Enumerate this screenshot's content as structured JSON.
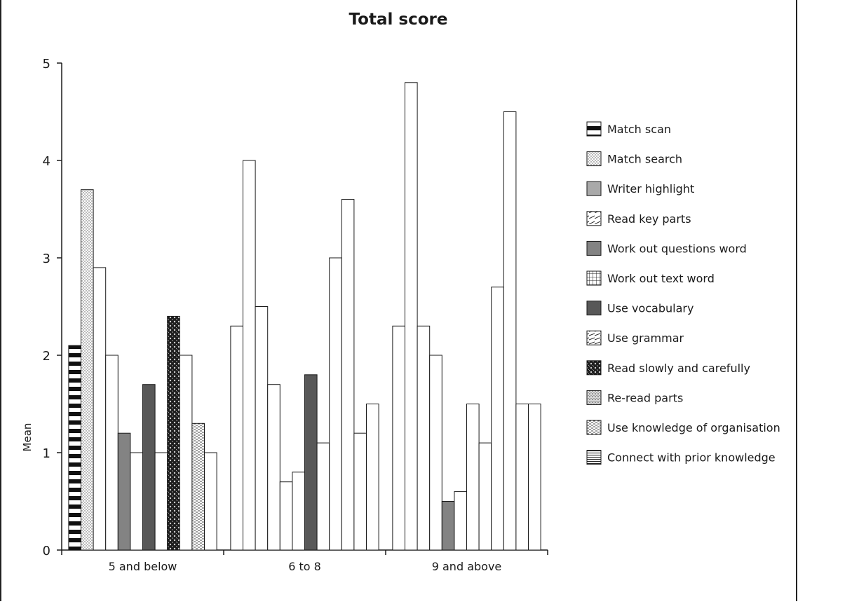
{
  "chart_data": {
    "type": "bar",
    "title": "Total score",
    "xlabel": "",
    "ylabel": "Mean",
    "ylim": [
      0,
      5
    ],
    "yticks": [
      "0",
      "1",
      "2",
      "3",
      "4",
      "5"
    ],
    "categories": [
      "5 and below",
      "6 to 8",
      "9 and above"
    ],
    "grid": false,
    "legend_position": "right",
    "series": [
      {
        "name": "Match scan",
        "pattern": "horizontal-stripes-thick",
        "values": [
          2.1,
          2.3,
          2.3
        ]
      },
      {
        "name": "Match search",
        "pattern": "fine-dots",
        "values": [
          3.7,
          4.0,
          4.8
        ]
      },
      {
        "name": "Writer highlight",
        "pattern": "solid-light-grey",
        "values": [
          2.9,
          2.5,
          2.3
        ]
      },
      {
        "name": "Read key parts",
        "pattern": "diagonal-lines",
        "values": [
          2.0,
          1.7,
          2.0
        ]
      },
      {
        "name": "Work out questions word",
        "pattern": "solid-mid-grey",
        "values": [
          1.2,
          0.7,
          0.5
        ]
      },
      {
        "name": "Work out text word",
        "pattern": "grid",
        "values": [
          1.0,
          0.8,
          0.6
        ]
      },
      {
        "name": "Use vocabulary",
        "pattern": "solid-dark-grey",
        "values": [
          1.7,
          1.8,
          1.5
        ]
      },
      {
        "name": "Use grammar",
        "pattern": "slanted-lines",
        "values": [
          1.0,
          1.1,
          1.1
        ]
      },
      {
        "name": "Read slowly and carefully",
        "pattern": "crosshatch-dark",
        "values": [
          2.4,
          3.0,
          2.7
        ]
      },
      {
        "name": "Re-read parts",
        "pattern": "stipple",
        "values": [
          2.0,
          3.6,
          4.5
        ]
      },
      {
        "name": "Use knowledge of organisation",
        "pattern": "dashes",
        "values": [
          1.3,
          1.2,
          1.5
        ]
      },
      {
        "name": "Connect with prior knowledge",
        "pattern": "horizontal-lines-fine",
        "values": [
          1.0,
          1.5,
          1.5
        ]
      }
    ],
    "patterned_bars_shown": [
      [
        true,
        true,
        false,
        false,
        true,
        false,
        true,
        false,
        true,
        false,
        true,
        false
      ],
      [
        false,
        false,
        false,
        false,
        false,
        false,
        true,
        false,
        false,
        false,
        false,
        false
      ],
      [
        false,
        false,
        false,
        false,
        true,
        false,
        false,
        false,
        false,
        false,
        false,
        false
      ]
    ]
  }
}
